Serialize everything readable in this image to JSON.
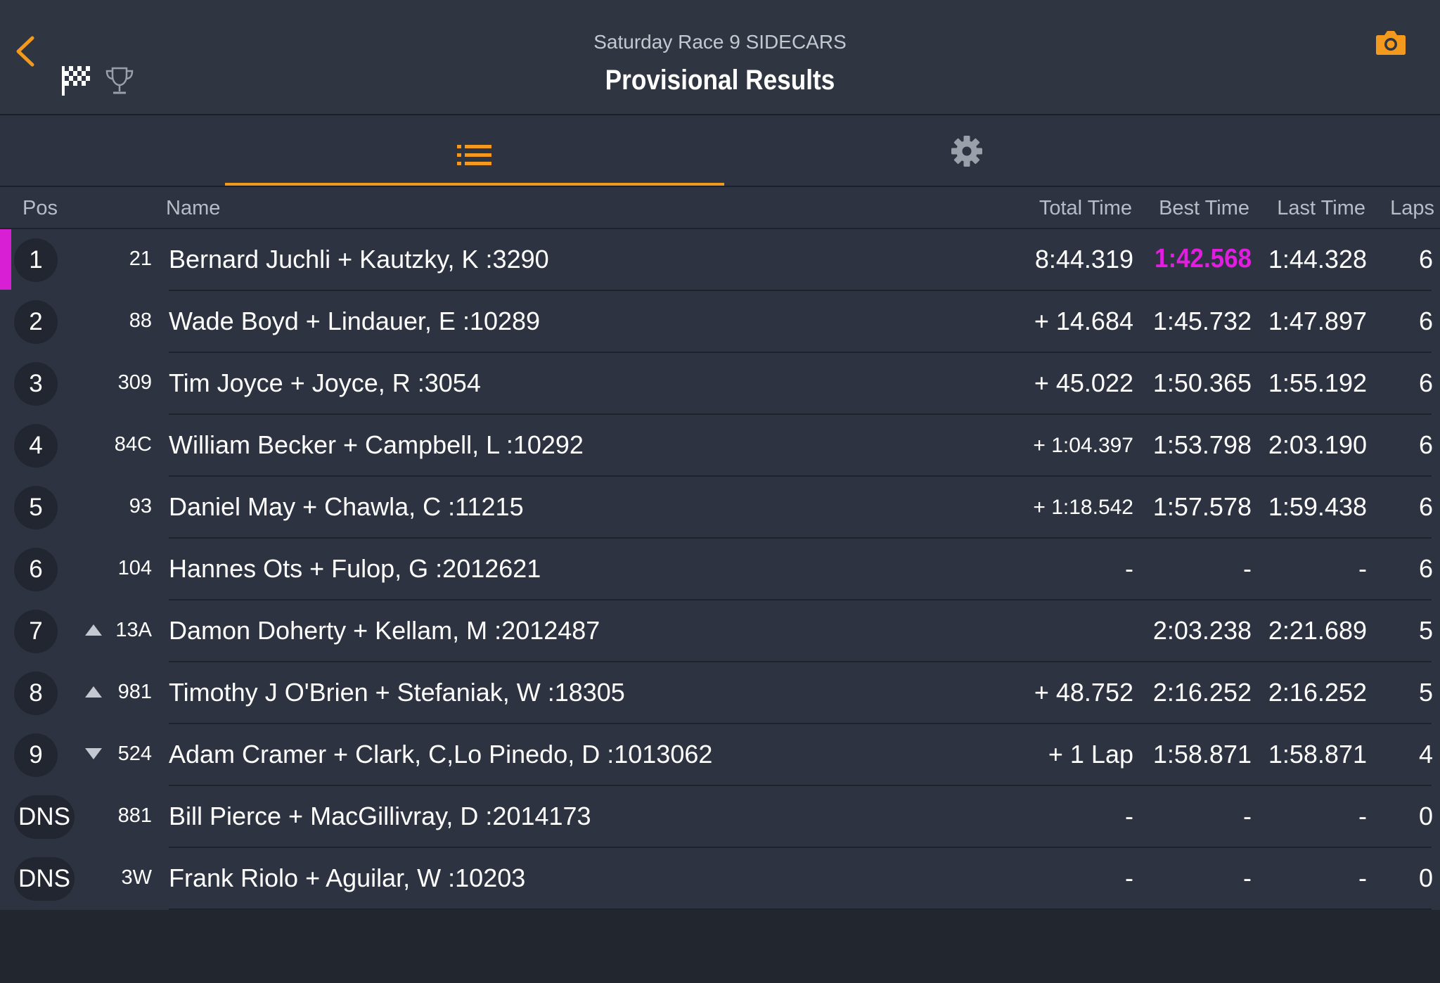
{
  "header": {
    "subtitle": "Saturday Race 9 SIDECARS",
    "title": "Provisional Results"
  },
  "icons": {
    "back": "chevron-left-icon",
    "flag": "checkered-flag-icon",
    "trophy": "trophy-icon",
    "camera": "camera-icon",
    "list": "list-icon",
    "settings": "gear-icon"
  },
  "colors": {
    "accent": "#f39a1e",
    "fastest": "#e11ee0",
    "background": "#2d3340"
  },
  "columns": {
    "pos": "Pos",
    "name": "Name",
    "total": "Total Time",
    "best": "Best Time",
    "last": "Last Time",
    "laps": "Laps"
  },
  "rows": [
    {
      "pos": "1",
      "num": "21",
      "name": "Bernard Juchli + Kautzky, K :3290",
      "total": "8:44.319",
      "best": "1:42.568",
      "last": "1:44.328",
      "laps": "6",
      "arrow": ""
    },
    {
      "pos": "2",
      "num": "88",
      "name": "Wade Boyd + Lindauer, E :10289",
      "total": "+ 14.684",
      "best": "1:45.732",
      "last": "1:47.897",
      "laps": "6",
      "arrow": ""
    },
    {
      "pos": "3",
      "num": "309",
      "name": "Tim Joyce + Joyce, R :3054",
      "total": "+ 45.022",
      "best": "1:50.365",
      "last": "1:55.192",
      "laps": "6",
      "arrow": ""
    },
    {
      "pos": "4",
      "num": "84C",
      "name": "William Becker + Campbell, L :10292",
      "total": "+ 1:04.397",
      "best": "1:53.798",
      "last": "2:03.190",
      "laps": "6",
      "arrow": ""
    },
    {
      "pos": "5",
      "num": "93",
      "name": "Daniel May + Chawla, C :11215",
      "total": "+ 1:18.542",
      "best": "1:57.578",
      "last": "1:59.438",
      "laps": "6",
      "arrow": ""
    },
    {
      "pos": "6",
      "num": "104",
      "name": "Hannes Ots + Fulop, G :2012621",
      "total": "-",
      "best": "-",
      "last": "-",
      "laps": "6",
      "arrow": ""
    },
    {
      "pos": "7",
      "num": "13A",
      "name": "Damon Doherty + Kellam, M :2012487",
      "total": "",
      "best": "2:03.238",
      "last": "2:21.689",
      "laps": "5",
      "arrow": "up"
    },
    {
      "pos": "8",
      "num": "981",
      "name": "Timothy J O'Brien + Stefaniak, W :18305",
      "total": "+ 48.752",
      "best": "2:16.252",
      "last": "2:16.252",
      "laps": "5",
      "arrow": "up"
    },
    {
      "pos": "9",
      "num": "524",
      "name": "Adam Cramer + Clark, C,Lo Pinedo, D :1013062",
      "total": "+ 1 Lap",
      "best": "1:58.871",
      "last": "1:58.871",
      "laps": "4",
      "arrow": "down"
    },
    {
      "pos": "DNS",
      "num": "881",
      "name": "Bill Pierce + MacGillivray, D :2014173",
      "total": "-",
      "best": "-",
      "last": "-",
      "laps": "0",
      "arrow": ""
    },
    {
      "pos": "DNS",
      "num": "3W",
      "name": "Frank Riolo + Aguilar, W :10203",
      "total": "-",
      "best": "-",
      "last": "-",
      "laps": "0",
      "arrow": ""
    }
  ]
}
